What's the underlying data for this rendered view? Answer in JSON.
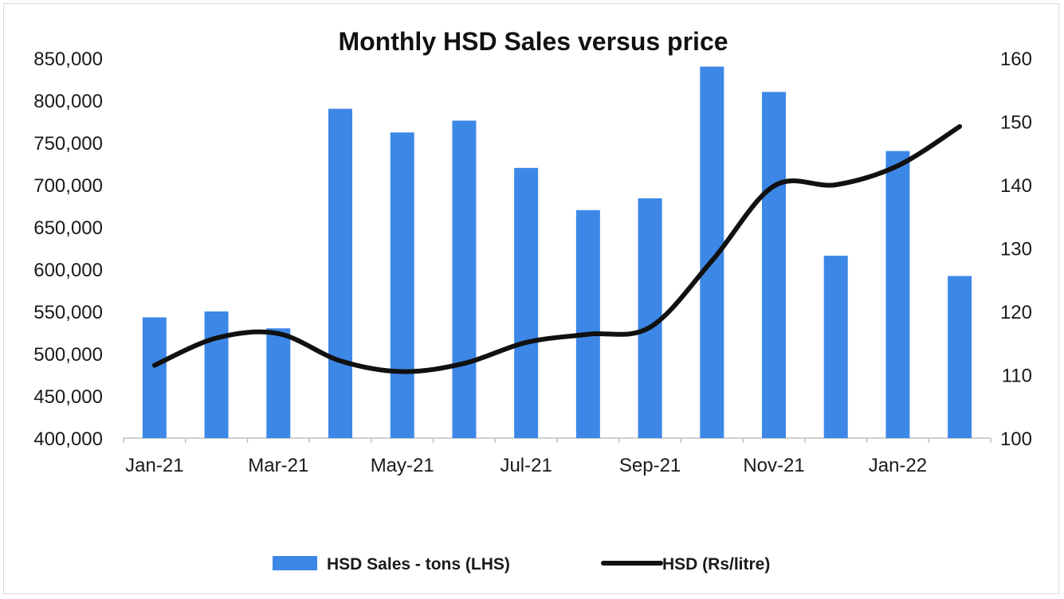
{
  "chart_data": {
    "type": "bar",
    "title": "Monthly HSD Sales versus price",
    "categories": [
      "Jan-21",
      "Feb-21",
      "Mar-21",
      "Apr-21",
      "May-21",
      "Jun-21",
      "Jul-21",
      "Aug-21",
      "Sep-21",
      "Oct-21",
      "Nov-21",
      "Dec-21",
      "Jan-22",
      "Feb-22"
    ],
    "x_tick_labels": [
      "Jan-21",
      "Mar-21",
      "May-21",
      "Jul-21",
      "Sep-21",
      "Nov-21",
      "Jan-22"
    ],
    "series": [
      {
        "name": "HSD Sales - tons (LHS)",
        "type": "bar",
        "axis": "left",
        "color": "#3d87e6",
        "values": [
          543000,
          550000,
          530000,
          790000,
          762000,
          776000,
          720000,
          670000,
          684000,
          840000,
          810000,
          616000,
          740000,
          592000
        ]
      },
      {
        "name": "HSD (Rs/litre)",
        "type": "line",
        "axis": "right",
        "color": "#111111",
        "values": [
          111.5,
          115.8,
          116.5,
          112.2,
          110.5,
          111.8,
          115.1,
          116.4,
          117.5,
          128.0,
          139.8,
          140.0,
          143.0,
          149.2
        ]
      }
    ],
    "y_left": {
      "ylim": [
        400000,
        850000
      ],
      "ticks": [
        400000,
        450000,
        500000,
        550000,
        600000,
        650000,
        700000,
        750000,
        800000,
        850000
      ],
      "tick_labels": [
        "400,000",
        "450,000",
        "500,000",
        "550,000",
        "600,000",
        "650,000",
        "700,000",
        "750,000",
        "800,000",
        "850,000"
      ]
    },
    "y_right": {
      "ylim": [
        100,
        160
      ],
      "ticks": [
        100,
        110,
        120,
        130,
        140,
        150,
        160
      ],
      "tick_labels": [
        "100",
        "110",
        "120",
        "130",
        "140",
        "150",
        "160"
      ]
    },
    "xlabel": "",
    "ylabel": "",
    "grid": false,
    "legend_position": "bottom"
  }
}
